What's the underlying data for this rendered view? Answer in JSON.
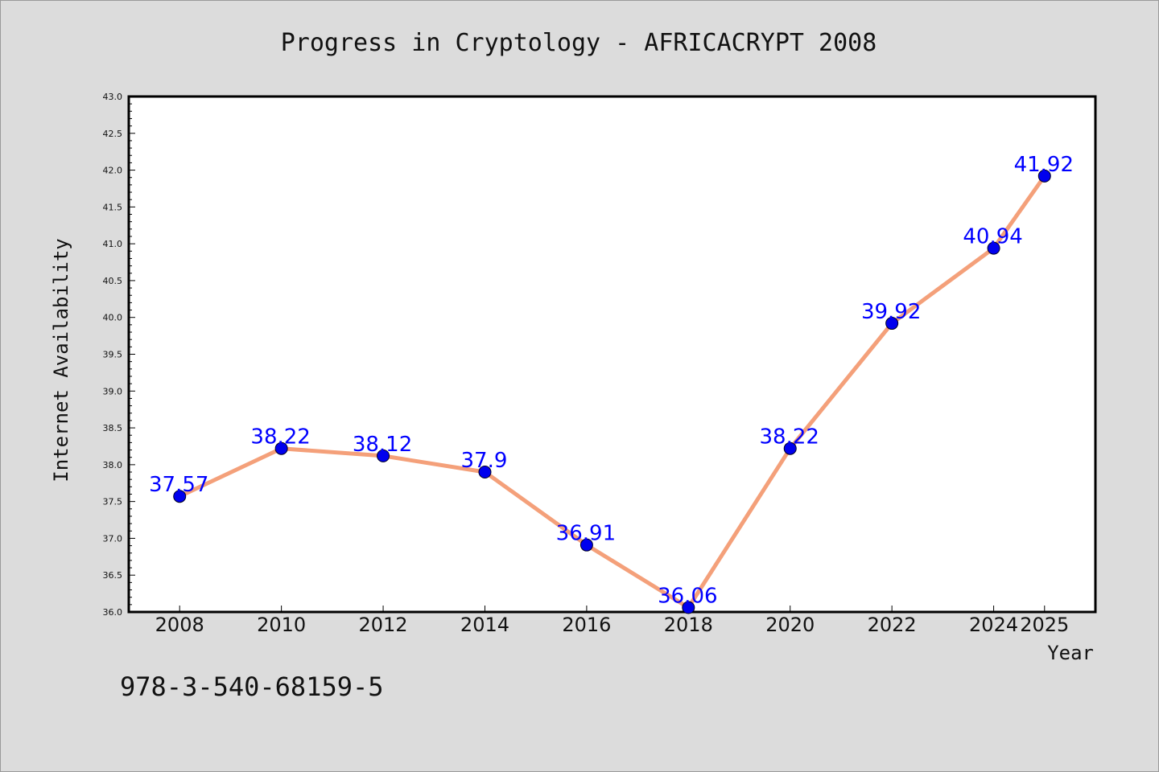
{
  "footer": {
    "isbn": "978-3-540-68159-5"
  },
  "chart_data": {
    "type": "line",
    "title": "Progress in Cryptology - AFRICACRYPT 2008",
    "xlabel": "Year",
    "ylabel": "Internet Availability",
    "categories": [
      "2008",
      "2010",
      "2012",
      "2014",
      "2016",
      "2018",
      "2020",
      "2022",
      "2024",
      "2025"
    ],
    "series": [
      {
        "values": [
          37.57,
          38.22,
          38.12,
          37.9,
          36.91,
          36.06,
          38.22,
          39.92,
          40.94,
          41.92
        ],
        "data_labels": [
          "37.57",
          "38.22",
          "38.12",
          "37.9",
          "36.91",
          "36.06",
          "38.22",
          "39.92",
          "40.94",
          "41.92"
        ]
      }
    ],
    "ylim": [
      36.0,
      43.0
    ],
    "yticks": [
      "36.0",
      "36.5",
      "37.0",
      "37.5",
      "38.0",
      "38.5",
      "39.0",
      "39.5",
      "40.0",
      "40.5",
      "41.0",
      "41.5",
      "42.0",
      "42.5",
      "43.0"
    ],
    "grid": false,
    "legend": "none",
    "colors": {
      "line": "#f4a07a",
      "marker": "#0000ee",
      "data_label": "#0000ff",
      "background": "#dcdcdc",
      "plot_background": "#ffffff"
    }
  }
}
